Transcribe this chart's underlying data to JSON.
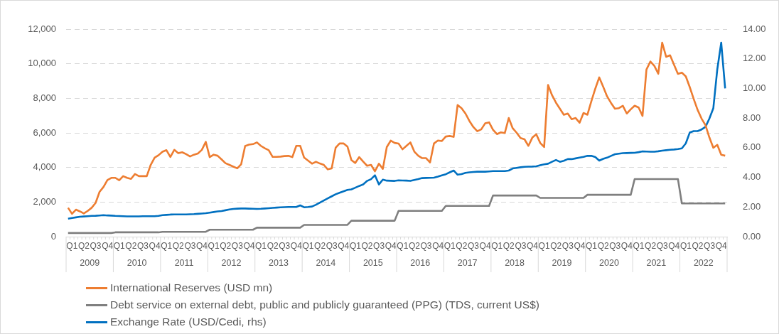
{
  "chart_data": {
    "type": "line",
    "categories": [
      null,
      "Q1",
      null,
      null,
      "Q2",
      null,
      null,
      "Q3",
      null,
      null,
      "Q4",
      null,
      null,
      "Q1",
      null,
      null,
      "Q2",
      null,
      null,
      "Q3",
      null,
      null,
      "Q4",
      null,
      null,
      "Q1",
      null,
      null,
      "Q2",
      null,
      null,
      "Q3",
      null,
      null,
      "Q4",
      null,
      null,
      "Q1",
      null,
      null,
      "Q2",
      null,
      null,
      "Q3",
      null,
      null,
      "Q4",
      null,
      null,
      "Q1",
      null,
      null,
      "Q2",
      null,
      null,
      "Q3",
      null,
      null,
      "Q4",
      null,
      null,
      "Q1",
      null,
      null,
      "Q2",
      null,
      null,
      "Q3",
      null,
      null,
      "Q4",
      null,
      null,
      "Q1",
      null,
      null,
      "Q2",
      null,
      null,
      "Q3",
      null,
      null,
      "Q4",
      null,
      null,
      "Q1",
      null,
      null,
      "Q2",
      null,
      null,
      "Q3",
      null,
      null,
      "Q4",
      null,
      null,
      "Q1",
      null,
      null,
      "Q2",
      null,
      null,
      "Q3",
      null,
      null,
      "Q4",
      null,
      null,
      "Q1",
      null,
      null,
      "Q2",
      null,
      null,
      "Q3",
      null,
      null,
      "Q4",
      null,
      null,
      "Q1",
      null,
      null,
      "Q2",
      null,
      null,
      "Q3",
      null,
      null,
      "Q4",
      null,
      null,
      "Q1",
      null,
      null,
      "Q2",
      null,
      null,
      "Q3",
      null,
      null,
      "Q4",
      null,
      null,
      "Q1",
      null,
      null,
      "Q2",
      null,
      null,
      "Q3",
      null,
      null,
      "Q4",
      null,
      null,
      "Q1",
      null,
      null,
      "Q2",
      null,
      null,
      "Q3",
      null,
      null,
      "Q4",
      null
    ],
    "series": [
      {
        "name": "International Reserves (USD mn)",
        "color": "#ed7d31",
        "values": [
          1670,
          1320,
          1560,
          1460,
          1340,
          1490,
          1670,
          1950,
          2590,
          2870,
          3270,
          3400,
          3400,
          3260,
          3500,
          3400,
          3340,
          3620,
          3500,
          3500,
          3500,
          4150,
          4570,
          4710,
          4910,
          5000,
          4610,
          5020,
          4830,
          4880,
          4770,
          4640,
          4740,
          4810,
          5020,
          5480,
          4600,
          4740,
          4680,
          4470,
          4250,
          4150,
          4050,
          3950,
          4190,
          5240,
          5320,
          5350,
          5450,
          5250,
          5110,
          5000,
          4610,
          4610,
          4630,
          4660,
          4670,
          4600,
          5250,
          5250,
          4570,
          4400,
          4220,
          4330,
          4230,
          4150,
          3890,
          3950,
          5140,
          5390,
          5390,
          5210,
          4430,
          4260,
          4600,
          4340,
          4100,
          4150,
          3780,
          4220,
          3920,
          5180,
          5550,
          5420,
          5380,
          5050,
          5250,
          5450,
          4920,
          4680,
          4540,
          4540,
          4290,
          5390,
          5560,
          5530,
          5790,
          5820,
          5770,
          7610,
          7430,
          7120,
          6690,
          6340,
          6100,
          6200,
          6550,
          6610,
          6180,
          5930,
          6030,
          5990,
          6860,
          6270,
          6010,
          5700,
          5630,
          5250,
          5730,
          5920,
          5420,
          5180,
          8770,
          8180,
          7750,
          7400,
          7050,
          7120,
          6790,
          6860,
          6590,
          7150,
          7050,
          7830,
          8560,
          9210,
          8670,
          8110,
          7730,
          7400,
          7430,
          7570,
          7120,
          7360,
          7570,
          7470,
          6980,
          9660,
          10130,
          9880,
          9420,
          11220,
          10400,
          10490,
          9950,
          9410,
          9480,
          9270,
          8650,
          7970,
          7330,
          6830,
          6450,
          5730,
          5140,
          5310,
          4740,
          4680
        ]
      },
      {
        "name": "Debt service on external debt, public and publicly guaranteed (PPG) (TDS, current US$)",
        "color": "#7f7f7f",
        "values": [
          210,
          210,
          210,
          210,
          210,
          210,
          210,
          210,
          210,
          210,
          210,
          210,
          250,
          250,
          250,
          250,
          250,
          250,
          250,
          250,
          250,
          250,
          250,
          250,
          280,
          280,
          280,
          280,
          280,
          280,
          280,
          280,
          280,
          280,
          280,
          280,
          400,
          400,
          400,
          400,
          400,
          400,
          400,
          400,
          400,
          400,
          400,
          400,
          520,
          520,
          520,
          520,
          520,
          520,
          520,
          520,
          520,
          520,
          520,
          520,
          680,
          680,
          680,
          680,
          680,
          680,
          680,
          680,
          680,
          680,
          680,
          680,
          920,
          920,
          920,
          920,
          920,
          920,
          920,
          920,
          920,
          920,
          920,
          920,
          1490,
          1490,
          1490,
          1490,
          1490,
          1490,
          1490,
          1490,
          1490,
          1490,
          1490,
          1490,
          1780,
          1780,
          1780,
          1780,
          1780,
          1780,
          1780,
          1780,
          1780,
          1780,
          1780,
          1780,
          2380,
          2380,
          2380,
          2380,
          2380,
          2380,
          2380,
          2380,
          2380,
          2380,
          2380,
          2380,
          2240,
          2240,
          2240,
          2240,
          2240,
          2240,
          2240,
          2240,
          2240,
          2240,
          2240,
          2240,
          2420,
          2420,
          2420,
          2420,
          2420,
          2420,
          2420,
          2420,
          2420,
          2420,
          2420,
          2420,
          3330,
          3330,
          3330,
          3330,
          3330,
          3330,
          3330,
          3330,
          3330,
          3330,
          3330,
          3330,
          1920,
          1920,
          1920,
          1920,
          1920,
          1920,
          1920,
          1920,
          1920,
          1920,
          1920,
          1920
        ]
      },
      {
        "name": "Exchange Rate (USD/Cedi, rhs)",
        "color": "#0070c0",
        "axis": "y2",
        "values": [
          1.21,
          1.26,
          1.3,
          1.34,
          1.36,
          1.38,
          1.4,
          1.41,
          1.43,
          1.45,
          1.43,
          1.42,
          1.4,
          1.39,
          1.38,
          1.37,
          1.37,
          1.37,
          1.37,
          1.38,
          1.38,
          1.38,
          1.38,
          1.4,
          1.45,
          1.47,
          1.49,
          1.5,
          1.5,
          1.5,
          1.5,
          1.51,
          1.52,
          1.54,
          1.56,
          1.58,
          1.62,
          1.66,
          1.7,
          1.73,
          1.78,
          1.83,
          1.87,
          1.89,
          1.9,
          1.9,
          1.89,
          1.88,
          1.87,
          1.88,
          1.9,
          1.92,
          1.94,
          1.96,
          1.98,
          1.99,
          2.0,
          2.0,
          2.0,
          2.11,
          1.98,
          2.0,
          2.03,
          2.15,
          2.3,
          2.44,
          2.58,
          2.72,
          2.86,
          2.96,
          3.06,
          3.15,
          3.19,
          3.3,
          3.42,
          3.52,
          3.76,
          3.88,
          4.14,
          3.52,
          3.85,
          3.78,
          3.77,
          3.76,
          3.8,
          3.79,
          3.78,
          3.76,
          3.82,
          3.88,
          3.95,
          3.96,
          3.97,
          3.98,
          4.05,
          4.13,
          4.21,
          4.34,
          4.46,
          4.18,
          4.22,
          4.3,
          4.34,
          4.36,
          4.38,
          4.39,
          4.38,
          4.4,
          4.42,
          4.42,
          4.42,
          4.42,
          4.46,
          4.6,
          4.64,
          4.68,
          4.71,
          4.72,
          4.73,
          4.75,
          4.82,
          4.88,
          4.92,
          5.05,
          5.17,
          5.05,
          5.12,
          5.23,
          5.23,
          5.28,
          5.33,
          5.38,
          5.45,
          5.45,
          5.37,
          5.13,
          5.25,
          5.33,
          5.45,
          5.56,
          5.6,
          5.63,
          5.64,
          5.65,
          5.66,
          5.7,
          5.75,
          5.74,
          5.73,
          5.73,
          5.76,
          5.8,
          5.83,
          5.86,
          5.88,
          5.91,
          5.96,
          6.29,
          7.02,
          7.12,
          7.12,
          7.23,
          7.4,
          7.97,
          8.67,
          11.28,
          13.09,
          10.0
        ]
      }
    ],
    "annotations": [
      "2009",
      "2010",
      "2011",
      "2012",
      "2013",
      "2014",
      "2015",
      "2016",
      "2017",
      "2018",
      "2019",
      "2020",
      "2021",
      "2022"
    ],
    "ylim": [
      0,
      12000
    ],
    "yticks": [
      {
        "value": 0,
        "label": "0"
      },
      {
        "value": 2000,
        "label": "2,000"
      },
      {
        "value": 4000,
        "label": "4,000"
      },
      {
        "value": 6000,
        "label": "6,000"
      },
      {
        "value": 8000,
        "label": "8,000"
      },
      {
        "value": 10000,
        "label": "10,000"
      },
      {
        "value": 12000,
        "label": "12,000"
      }
    ],
    "y2lim": [
      0,
      14
    ],
    "y2ticks": [
      {
        "value": 0,
        "label": "0.00"
      },
      {
        "value": 2,
        "label": "2.00"
      },
      {
        "value": 4,
        "label": "4.00"
      },
      {
        "value": 6,
        "label": "6.00"
      },
      {
        "value": 8,
        "label": "8.00"
      },
      {
        "value": 10,
        "label": "10.00"
      },
      {
        "value": 12,
        "label": "12.00"
      },
      {
        "value": 14,
        "label": "14.00"
      }
    ],
    "grid": "y",
    "legend": "bottom",
    "marker": "none"
  }
}
